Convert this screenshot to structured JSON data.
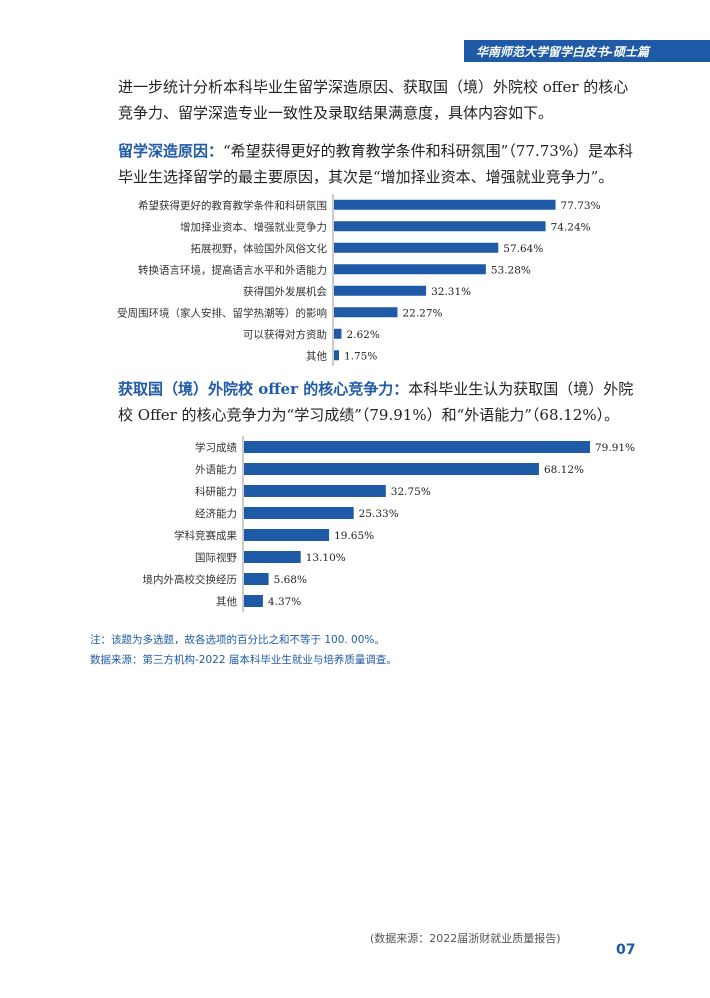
{
  "header": {
    "title": "华南师范大学留学白皮书-硕士篇"
  },
  "intro": {
    "text": "进一步统计分析本科毕业生留学深造原因、获取国（境）外院校 offer 的核心竞争力、留学深造专业一致性及录取结果满意度，具体内容如下。"
  },
  "section1": {
    "heading": "留学深造原因：",
    "text": "“希望获得更好的教育教学条件和科研氛围”（77.73%）是本科毕业生选择留学的最主要原因，其次是“增加择业资本、增强就业竞争力”。"
  },
  "section2": {
    "heading": "获取国（境）外院校 offer 的核心竞争力：",
    "text": "本科毕业生认为获取国（境）外院校 Offer 的核心竞争力为“学习成绩”（79.91%）和“外语能力”（68.12%）。"
  },
  "chart_data": [
    {
      "type": "bar",
      "orientation": "horizontal",
      "categories": [
        "希望获得更好的教育教学条件和科研氛围",
        "增加择业资本、增强就业竞争力",
        "拓展视野，体验国外风俗文化",
        "转换语言环境，提高语言水平和外语能力",
        "获得国外发展机会",
        "受周围环境（家人安排、留学热潮等）的影响",
        "可以获得对方资助",
        "其他"
      ],
      "values": [
        77.73,
        74.24,
        57.64,
        53.28,
        32.31,
        22.27,
        2.62,
        1.75
      ],
      "labels": [
        "77.73%",
        "74.24%",
        "57.64%",
        "53.28%",
        "32.31%",
        "22.27%",
        "2.62%",
        "1.75%"
      ],
      "xlim": [
        0,
        100
      ],
      "color": "#1f5aa6"
    },
    {
      "type": "bar",
      "orientation": "horizontal",
      "categories": [
        "学习成绩",
        "外语能力",
        "科研能力",
        "经济能力",
        "学科竞赛成果",
        "国际视野",
        "境内外高校交换经历",
        "其他"
      ],
      "values": [
        79.91,
        68.12,
        32.75,
        25.33,
        19.65,
        13.1,
        5.68,
        4.37
      ],
      "labels": [
        "79.91%",
        "68.12%",
        "32.75%",
        "25.33%",
        "19.65%",
        "13.10%",
        "5.68%",
        "4.37%"
      ],
      "xlim": [
        0,
        100
      ],
      "color": "#1f5aa6"
    }
  ],
  "notes": {
    "note": "注：该题为多选题，故各选项的百分比之和不等于 100. 00%。",
    "source": "数据来源：第三方机构-2022 届本科毕业生就业与培养质量调查。"
  },
  "footer": {
    "source": "(数据来源：2022届浙财就业质量报告)",
    "page": "07"
  }
}
